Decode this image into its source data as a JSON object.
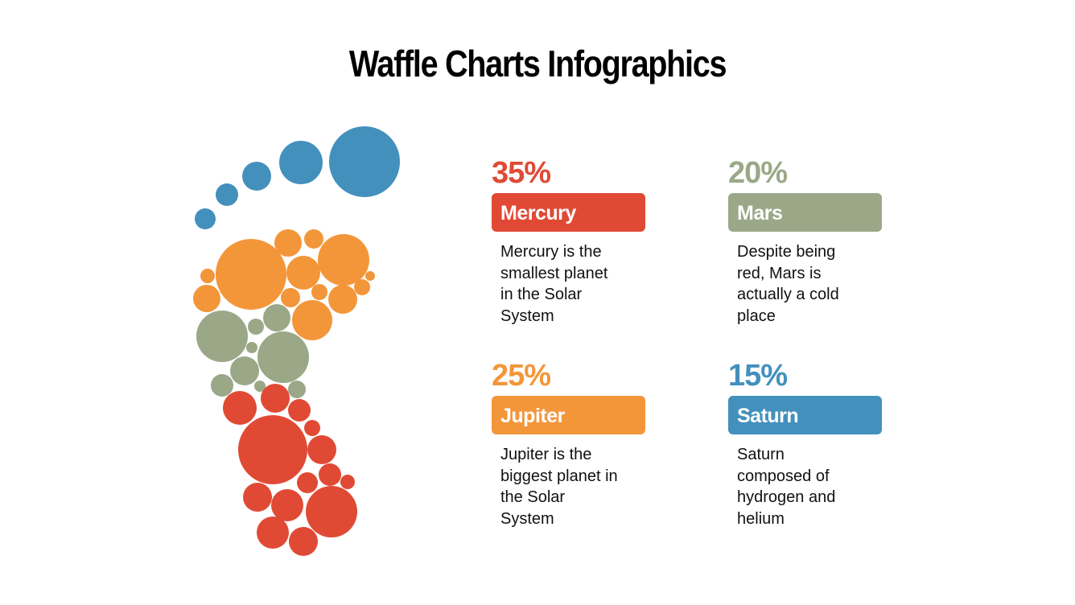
{
  "title": "Waffle Charts Infographics",
  "items": [
    {
      "percent": "35%",
      "name": "Mercury",
      "color": "#e04a35",
      "description": [
        "Mercury is the",
        "smallest planet",
        "in the Solar",
        "System"
      ]
    },
    {
      "percent": "20%",
      "name": "Mars",
      "color": "#9aa888",
      "description": [
        "Despite being",
        "red, Mars is",
        "actually a cold",
        "place"
      ]
    },
    {
      "percent": "25%",
      "name": "Jupiter",
      "color": "#f3963a",
      "description": [
        "Jupiter is the",
        "biggest planet in",
        "the Solar",
        "System"
      ]
    },
    {
      "percent": "15%",
      "name": "Saturn",
      "color": "#4390bd",
      "description": [
        "Saturn",
        "composed of",
        "hydrogen and",
        "helium"
      ]
    }
  ]
}
